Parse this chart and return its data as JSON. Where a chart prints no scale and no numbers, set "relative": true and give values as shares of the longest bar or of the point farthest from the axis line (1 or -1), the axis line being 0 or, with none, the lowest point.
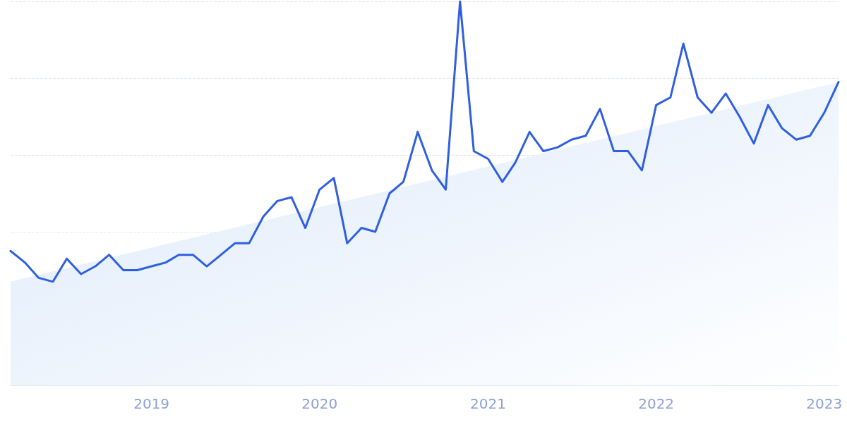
{
  "chart_data": {
    "type": "line",
    "relative": true,
    "grid": "y",
    "tick_labels": "x",
    "line_style": "solid",
    "marker": "none",
    "xlim": [
      "2018-03",
      "2023-02"
    ],
    "xticks": [
      {
        "value": "2019-01",
        "label": "2019"
      },
      {
        "value": "2020-01",
        "label": "2020"
      },
      {
        "value": "2021-01",
        "label": "2021"
      },
      {
        "value": "2022-01",
        "label": "2022"
      },
      {
        "value": "2023-01",
        "label": "2023"
      }
    ],
    "series": [
      {
        "type": "area",
        "color": "#dce9fa",
        "x": [
          "2018-03",
          "2023-02"
        ],
        "values": [
          0.27,
          0.79
        ]
      },
      {
        "type": "line",
        "color": "#2f5fe0",
        "x": [
          "2018-03",
          "2018-04",
          "2018-05",
          "2018-06",
          "2018-07",
          "2018-08",
          "2018-09",
          "2018-10",
          "2018-11",
          "2018-12",
          "2019-01",
          "2019-02",
          "2019-03",
          "2019-04",
          "2019-05",
          "2019-06",
          "2019-07",
          "2019-08",
          "2019-09",
          "2019-10",
          "2019-11",
          "2019-12",
          "2020-01",
          "2020-02",
          "2020-03",
          "2020-04",
          "2020-05",
          "2020-06",
          "2020-07",
          "2020-08",
          "2020-09",
          "2020-10",
          "2020-11",
          "2020-12",
          "2021-01",
          "2021-02",
          "2021-03",
          "2021-04",
          "2021-05",
          "2021-06",
          "2021-07",
          "2021-08",
          "2021-09",
          "2021-10",
          "2021-11",
          "2021-12",
          "2022-01",
          "2022-02",
          "2022-03",
          "2022-04",
          "2022-05",
          "2022-06",
          "2022-07",
          "2022-08",
          "2022-09",
          "2022-10",
          "2022-11",
          "2022-12",
          "2023-01",
          "2023-02"
        ],
        "values": [
          0.35,
          0.32,
          0.28,
          0.27,
          0.33,
          0.29,
          0.31,
          0.34,
          0.3,
          0.3,
          0.31,
          0.32,
          0.34,
          0.34,
          0.31,
          0.34,
          0.37,
          0.37,
          0.44,
          0.48,
          0.49,
          0.41,
          0.51,
          0.54,
          0.37,
          0.41,
          0.4,
          0.5,
          0.53,
          0.66,
          0.56,
          0.51,
          1,
          0.61,
          0.59,
          0.53,
          0.58,
          0.66,
          0.61,
          0.62,
          0.64,
          0.65,
          0.72,
          0.61,
          0.61,
          0.56,
          0.73,
          0.75,
          0.89,
          0.75,
          0.71,
          0.76,
          0.7,
          0.63,
          0.73,
          0.67,
          0.64,
          0.65,
          0.71,
          0.79
        ]
      }
    ]
  }
}
